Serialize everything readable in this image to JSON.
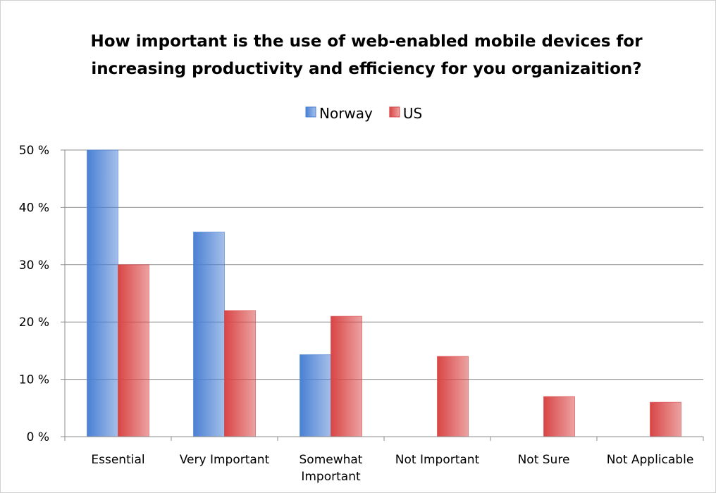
{
  "chart_data": {
    "type": "bar",
    "title": "How important is the use of web-enabled mobile devices for increasing productivity and efficiency for you organizaition?",
    "categories": [
      "Essential",
      "Very Important",
      "Somewhat Important",
      "Not Important",
      "Not Sure",
      "Not Applicable"
    ],
    "series": [
      {
        "name": "Norway",
        "color": "#4a80d4",
        "values": [
          50,
          35.7,
          14.3,
          0,
          0,
          0
        ]
      },
      {
        "name": "US",
        "color": "#d94545",
        "values": [
          30,
          22,
          21,
          14,
          7,
          6
        ]
      }
    ],
    "ylim": [
      0,
      50
    ],
    "yticks": [
      {
        "value": 0,
        "label": "0 %"
      },
      {
        "value": 10,
        "label": "10 %"
      },
      {
        "value": 20,
        "label": "20 %"
      },
      {
        "value": 30,
        "label": "30 %"
      },
      {
        "value": 40,
        "label": "40 %"
      },
      {
        "value": 50,
        "label": "50 %"
      }
    ],
    "grid": true,
    "legend": "top"
  }
}
